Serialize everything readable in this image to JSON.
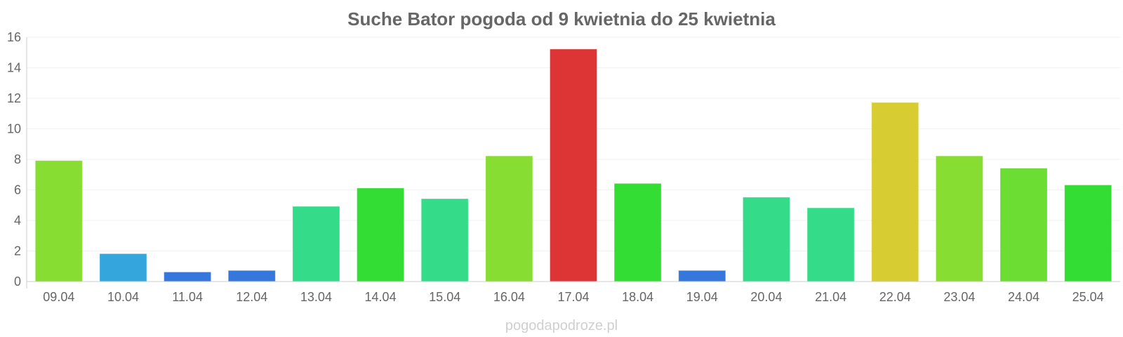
{
  "chart_data": {
    "type": "bar",
    "title": "Suche Bator pogoda od 9 kwietnia do 25 kwietnia",
    "xlabel": "",
    "ylabel": "",
    "categories": [
      "09.04",
      "10.04",
      "11.04",
      "12.04",
      "13.04",
      "14.04",
      "15.04",
      "16.04",
      "17.04",
      "18.04",
      "19.04",
      "20.04",
      "21.04",
      "22.04",
      "23.04",
      "24.04",
      "25.04"
    ],
    "values": [
      7.9,
      1.8,
      0.6,
      0.7,
      4.9,
      6.1,
      5.4,
      8.2,
      15.2,
      6.4,
      0.7,
      5.5,
      4.8,
      11.7,
      8.2,
      7.4,
      6.3
    ],
    "bar_colors": [
      "#88dd33",
      "#35a6dc",
      "#3677dd",
      "#3677dd",
      "#34dc8a",
      "#33dd33",
      "#34dc8a",
      "#88dd33",
      "#dd3535",
      "#33dd33",
      "#3677dd",
      "#34dc8a",
      "#34dc8a",
      "#d8cc33",
      "#88dd33",
      "#6bdd33",
      "#33dd33"
    ],
    "ylim": [
      0,
      16
    ],
    "yticks": [
      0,
      2,
      4,
      6,
      8,
      10,
      12,
      14,
      16
    ],
    "grid": true,
    "legend": "none"
  },
  "watermark": "pogodapodroze.pl"
}
